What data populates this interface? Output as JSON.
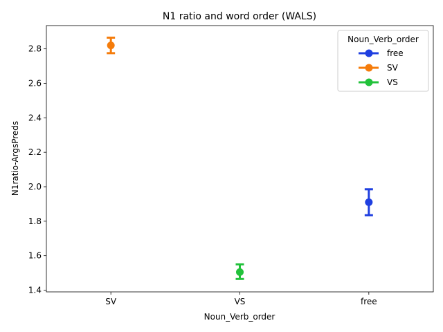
{
  "chart_data": {
    "type": "scatter",
    "title": "N1 ratio and word order (WALS)",
    "xlabel": "Noun_Verb_order",
    "ylabel": "N1ratio-ArgsPreds",
    "categories": [
      "SV",
      "VS",
      "free"
    ],
    "ylim": [
      1.39,
      2.935
    ],
    "yticks": [
      1.4,
      1.6,
      1.8,
      2.0,
      2.2,
      2.4,
      2.6,
      2.8
    ],
    "ytick_labels": [
      "1.4",
      "1.6",
      "1.8",
      "2.0",
      "2.2",
      "2.4",
      "2.6",
      "2.8"
    ],
    "grid": false,
    "legend": {
      "title": "Noun_Verb_order",
      "position": "top-right"
    },
    "series": [
      {
        "name": "free",
        "color": "#1f3fe0",
        "points": [
          {
            "x": "free",
            "y": 1.91,
            "err_low": 1.835,
            "err_high": 1.985
          }
        ]
      },
      {
        "name": "SV",
        "color": "#f57c0b",
        "points": [
          {
            "x": "SV",
            "y": 2.82,
            "err_low": 2.775,
            "err_high": 2.865
          }
        ]
      },
      {
        "name": "VS",
        "color": "#22c23b",
        "points": [
          {
            "x": "VS",
            "y": 1.505,
            "err_low": 1.465,
            "err_high": 1.55
          }
        ]
      }
    ]
  }
}
